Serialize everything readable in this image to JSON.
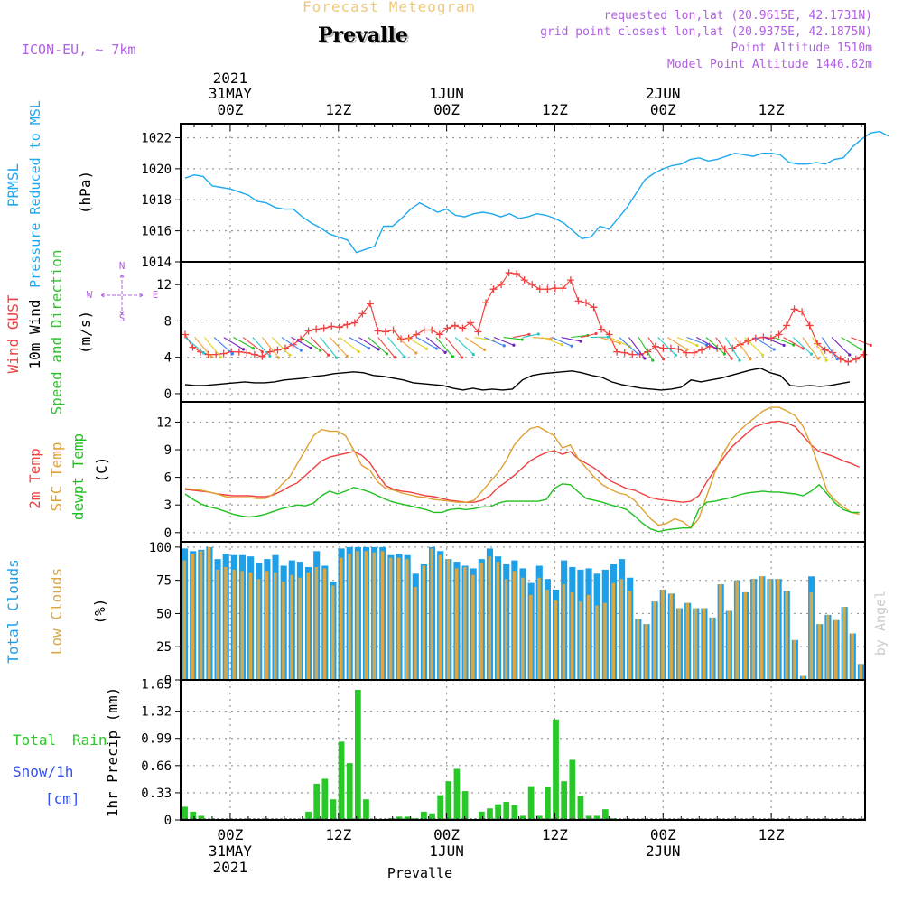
{
  "header": {
    "forecast_title": "Forecast Meteogram",
    "station": "Prevalle",
    "model": "ICON-EU, ~ 7km",
    "requested": "requested lon,lat (20.9615E, 42.1731N)",
    "grid_point": "grid point closest lon,lat (20.9375E, 42.1875N)",
    "point_altitude": "Point Altitude 1510m",
    "model_altitude": "Model Point Altitude 1446.62m",
    "credit": "by Angel",
    "footer_station": "Prevalle"
  },
  "time_axis": {
    "top_labels": [
      {
        "line1": "2021",
        "line2": "31MAY",
        "line3": "00Z",
        "hour": 0
      },
      {
        "line1": "",
        "line2": "",
        "line3": "12Z",
        "hour": 12
      },
      {
        "line1": "",
        "line2": "1JUN",
        "line3": "00Z",
        "hour": 24
      },
      {
        "line1": "",
        "line2": "",
        "line3": "12Z",
        "hour": 36
      },
      {
        "line1": "",
        "line2": "2JUN",
        "line3": "00Z",
        "hour": 48
      },
      {
        "line1": "",
        "line2": "",
        "line3": "12Z",
        "hour": 60
      }
    ],
    "bottom_labels": [
      {
        "line1": "00Z",
        "line2": "31MAY",
        "line3": "2021",
        "hour": 0
      },
      {
        "line1": "12Z",
        "line2": "",
        "line3": "",
        "hour": 12
      },
      {
        "line1": "00Z",
        "line2": "1JUN",
        "line3": "",
        "hour": 24
      },
      {
        "line1": "12Z",
        "line2": "",
        "line3": "",
        "hour": 36
      },
      {
        "line1": "00Z",
        "line2": "2JUN",
        "line3": "",
        "hour": 48
      },
      {
        "line1": "12Z",
        "line2": "",
        "line3": "",
        "hour": 60
      }
    ]
  },
  "colors": {
    "pressure": "#1ea8f0",
    "gust": "#f04040",
    "wind": "#000000",
    "direction_label": "#30c030",
    "compass": "#b060e0",
    "temp": "#f04040",
    "sfc_temp": "#e0a030",
    "dewpoint": "#20c020",
    "total_clouds": "#1ea0e8",
    "low_clouds": "#d8a848",
    "rain": "#28c828",
    "snow": "#3050f0"
  },
  "chart_data": [
    {
      "type": "line",
      "panel": "pressure",
      "ylabel_lines": [
        "PRMSL",
        "Pressure Reduced to MSL",
        "(hPa)"
      ],
      "yticks": [
        1014,
        1016,
        1018,
        1020,
        1022
      ],
      "ylim": [
        1014,
        1022.9
      ],
      "grid": true,
      "x_start_hour": -5,
      "x_step_hours": 1,
      "series": [
        {
          "values": [
            1019.4,
            1019.6,
            1019.5,
            1018.9,
            1018.8,
            1018.7,
            1018.5,
            1018.3,
            1017.9,
            1017.8,
            1017.5,
            1017.4,
            1017.4,
            1016.9,
            1016.5,
            1016.2,
            1015.8,
            1015.6,
            1015.4,
            1014.6,
            1014.8,
            1015.0,
            1016.3,
            1016.3,
            1016.8,
            1017.4,
            1017.8,
            1017.5,
            1017.2,
            1017.4,
            1017.0,
            1016.9,
            1017.1,
            1017.2,
            1017.1,
            1016.9,
            1017.1,
            1016.8,
            1016.9,
            1017.1,
            1017.0,
            1016.8,
            1016.5,
            1016.0,
            1015.5,
            1015.6,
            1016.3,
            1016.1,
            1016.8,
            1017.5,
            1018.4,
            1019.3,
            1019.7,
            1020.0,
            1020.2,
            1020.3,
            1020.6,
            1020.7,
            1020.5,
            1020.6,
            1020.8,
            1021.0,
            1020.9,
            1020.8,
            1021.0,
            1021.0,
            1020.9,
            1020.4,
            1020.3,
            1020.3,
            1020.4,
            1020.3,
            1020.6,
            1020.7,
            1021.4,
            1021.9,
            1022.3,
            1022.4,
            1022.1
          ]
        }
      ]
    },
    {
      "type": "line",
      "panel": "wind",
      "ylabel_lines": [
        "Wind GUST",
        "10m Wind",
        "Speed and Direction",
        "(m/s)"
      ],
      "compass": {
        "n": "N",
        "s": "S",
        "w": "W",
        "e": "E"
      },
      "yticks": [
        0,
        4,
        8,
        12
      ],
      "ylim": [
        -0.9,
        14.5
      ],
      "grid": true,
      "x_start_hour": -5,
      "x_step_hours": 1,
      "series": [
        {
          "name": "Wind GUST",
          "values": [
            6.5,
            5.1,
            4.6,
            4.3,
            4.3,
            4.4,
            4.6,
            4.6,
            4.5,
            4.3,
            4.1,
            4.6,
            4.8,
            5.0,
            5.4,
            6.0,
            6.9,
            7.1,
            7.2,
            7.4,
            7.3,
            7.6,
            7.8,
            8.8,
            9.9,
            6.9,
            6.8,
            7.0,
            6.0,
            6.1,
            6.5,
            7.0,
            7.0,
            6.5,
            7.2,
            7.5,
            7.2,
            7.8,
            6.8,
            10.0,
            11.5,
            12.0,
            13.3,
            13.2,
            12.5,
            12.0,
            11.5,
            11.5,
            11.6,
            11.6,
            12.5,
            10.2,
            10.0,
            9.5,
            7.1,
            6.5,
            4.6,
            4.5,
            4.3,
            4.3,
            4.6,
            5.2,
            5.0,
            5.0,
            4.9,
            4.5,
            4.5,
            4.8,
            5.2,
            5.0,
            4.9,
            5.0,
            5.4,
            5.8,
            6.1,
            6.2,
            6.1,
            6.5,
            7.5,
            9.3,
            9.0,
            7.5,
            5.5,
            4.8,
            4.5,
            3.8,
            3.5,
            3.8,
            4.3
          ]
        },
        {
          "name": "10m Wind",
          "values": [
            1.0,
            0.9,
            0.9,
            1.0,
            1.1,
            1.2,
            1.3,
            1.2,
            1.2,
            1.3,
            1.5,
            1.6,
            1.7,
            1.9,
            2.0,
            2.2,
            2.3,
            2.4,
            2.3,
            2.0,
            1.9,
            1.7,
            1.5,
            1.2,
            1.1,
            1.0,
            0.9,
            0.6,
            0.4,
            0.6,
            0.4,
            0.5,
            0.4,
            0.5,
            1.5,
            2.0,
            2.2,
            2.3,
            2.4,
            2.5,
            2.3,
            2.0,
            1.8,
            1.3,
            1.0,
            0.8,
            0.6,
            0.5,
            0.4,
            0.5,
            0.7,
            1.5,
            1.3,
            1.5,
            1.7,
            2.0,
            2.3,
            2.6,
            2.8,
            2.3,
            2.0,
            0.9,
            0.8,
            0.9,
            0.8,
            0.9,
            1.1,
            1.3
          ]
        }
      ],
      "arrows": {
        "y_value": 6.2,
        "start_hour": -5,
        "count": 70,
        "step_hours": 1.07
      },
      "legend_colors": [
        "#28c8c8",
        "#f0a030",
        "#e0d020",
        "#4080f0",
        "#7020c0",
        "#20c020",
        "#f04040"
      ]
    },
    {
      "type": "line",
      "panel": "temperature",
      "ylabel_lines": [
        "2m Temp",
        "SFC Temp",
        "dewpt Temp",
        "(C)"
      ],
      "yticks": [
        0,
        3,
        6,
        9,
        12
      ],
      "ylim": [
        -1,
        14.2
      ],
      "grid": true,
      "x_start_hour": -5,
      "x_step_hours": 1,
      "series": [
        {
          "name": "2m Temp",
          "values": [
            4.7,
            4.6,
            4.5,
            4.4,
            4.2,
            4.1,
            4.0,
            4.0,
            4.0,
            3.9,
            3.9,
            4.1,
            4.5,
            5.0,
            5.4,
            6.2,
            7.0,
            7.8,
            8.2,
            8.4,
            8.6,
            8.8,
            8.4,
            7.6,
            6.3,
            5.1,
            4.7,
            4.5,
            4.4,
            4.2,
            4.0,
            3.9,
            3.7,
            3.5,
            3.4,
            3.3,
            3.3,
            3.5,
            4.0,
            4.9,
            5.5,
            6.2,
            7.0,
            7.8,
            8.3,
            8.7,
            8.9,
            8.5,
            8.8,
            8.0,
            7.5,
            7.0,
            6.3,
            5.6,
            5.2,
            4.8,
            4.6,
            4.2,
            3.8,
            3.6,
            3.5,
            3.4,
            3.3,
            3.4,
            4.0,
            5.5,
            6.8,
            8.0,
            9.2,
            10.0,
            10.8,
            11.5,
            11.8,
            12.0,
            12.1,
            11.9,
            11.5,
            10.5,
            9.5,
            8.8,
            8.5,
            8.2,
            7.8,
            7.5,
            7.1
          ]
        },
        {
          "name": "SFC Temp",
          "values": [
            4.8,
            4.7,
            4.6,
            4.4,
            4.2,
            3.9,
            3.8,
            3.8,
            3.8,
            3.7,
            3.7,
            4.2,
            5.2,
            6.0,
            7.5,
            9.0,
            10.5,
            11.2,
            11.0,
            11.0,
            10.5,
            9.0,
            7.3,
            6.8,
            5.5,
            4.8,
            4.6,
            4.3,
            4.1,
            3.9,
            3.8,
            3.6,
            3.5,
            3.4,
            3.3,
            3.3,
            3.5,
            4.5,
            5.5,
            6.5,
            7.8,
            9.5,
            10.5,
            11.3,
            11.5,
            11.0,
            10.5,
            9.2,
            9.5,
            8.0,
            7.0,
            6.0,
            5.2,
            4.7,
            4.3,
            4.1,
            3.5,
            2.5,
            1.5,
            0.8,
            1.0,
            1.5,
            1.2,
            0.5,
            1.5,
            4.0,
            6.5,
            8.5,
            10.0,
            11.0,
            11.8,
            12.5,
            13.2,
            13.6,
            13.6,
            13.2,
            12.7,
            11.5,
            9.5,
            7.0,
            4.5,
            3.5,
            2.8,
            2.2,
            2.0
          ]
        },
        {
          "name": "dewpt Temp",
          "values": [
            4.2,
            3.6,
            3.1,
            2.8,
            2.6,
            2.3,
            2.0,
            1.8,
            1.7,
            1.8,
            2.0,
            2.3,
            2.6,
            2.8,
            3.0,
            2.9,
            3.2,
            4.0,
            4.5,
            4.2,
            4.5,
            4.9,
            4.7,
            4.4,
            4.0,
            3.6,
            3.3,
            3.1,
            2.9,
            2.7,
            2.5,
            2.2,
            2.2,
            2.5,
            2.6,
            2.5,
            2.6,
            2.8,
            2.8,
            3.2,
            3.4,
            3.4,
            3.4,
            3.4,
            3.4,
            3.6,
            4.8,
            5.3,
            5.2,
            4.4,
            3.7,
            3.5,
            3.3,
            3.0,
            2.8,
            2.5,
            1.8,
            1.0,
            0.4,
            0.1,
            0.3,
            0.4,
            0.5,
            0.5,
            2.5,
            3.3,
            3.4,
            3.6,
            3.8,
            4.1,
            4.3,
            4.4,
            4.5,
            4.4,
            4.4,
            4.3,
            4.2,
            4.0,
            4.5,
            5.2,
            4.2,
            3.2,
            2.5,
            2.2,
            2.2
          ]
        }
      ]
    },
    {
      "type": "bar",
      "panel": "clouds",
      "ylabel_lines": [
        "Total Clouds",
        "Low Clouds",
        "(%)"
      ],
      "yticks": [
        0,
        25,
        50,
        75,
        100
      ],
      "ylim": [
        0,
        104
      ],
      "grid": true,
      "x_start_hour": -4.5,
      "x_step_hours": 1,
      "series": [
        {
          "name": "Total Clouds",
          "values": [
            99,
            97,
            98,
            100,
            91,
            95,
            94,
            94,
            93,
            88,
            91,
            94,
            86,
            90,
            89,
            85,
            97,
            86,
            74,
            99,
            100,
            100,
            100,
            100,
            100,
            94,
            95,
            94,
            80,
            87,
            100,
            97,
            91,
            89,
            86,
            84,
            91,
            99,
            93,
            87,
            90,
            84,
            73,
            86,
            76,
            68,
            90,
            85,
            83,
            84,
            80,
            83,
            87,
            91,
            77,
            46,
            42,
            59,
            68,
            65,
            54,
            58,
            54,
            54,
            47,
            72,
            52,
            75,
            66,
            76,
            78,
            76,
            76,
            67,
            30,
            3,
            78,
            42,
            49,
            45,
            55,
            35,
            12
          ]
        },
        {
          "name": "Low Clouds",
          "values": [
            90,
            95,
            97,
            100,
            83,
            85,
            83,
            82,
            81,
            76,
            82,
            81,
            74,
            79,
            77,
            81,
            85,
            84,
            71,
            92,
            95,
            97,
            97,
            96,
            97,
            92,
            92,
            91,
            70,
            86,
            99,
            94,
            91,
            84,
            85,
            79,
            88,
            93,
            89,
            76,
            82,
            77,
            64,
            77,
            68,
            60,
            72,
            66,
            59,
            64,
            56,
            58,
            73,
            76,
            67,
            46,
            42,
            59,
            68,
            65,
            54,
            58,
            54,
            54,
            47,
            72,
            52,
            75,
            66,
            76,
            78,
            76,
            76,
            67,
            30,
            3,
            66,
            42,
            49,
            45,
            55,
            35,
            12
          ]
        }
      ]
    },
    {
      "type": "bar",
      "panel": "precip",
      "legend_lines": [
        "Total",
        "Rain",
        "Snow/1h",
        "[cm]"
      ],
      "ylabel_lines": [
        "1hr Precip (mm)"
      ],
      "yticks": [
        0,
        0.33,
        0.66,
        0.99,
        1.32,
        1.65
      ],
      "ylim": [
        0,
        1.7
      ],
      "grid": true,
      "x_start_hour": -4.5,
      "x_step_hours": 1,
      "series": [
        {
          "name": "Total Rain",
          "values": [
            0.16,
            0.1,
            0.05,
            0,
            0,
            0,
            0,
            0,
            0,
            0,
            0,
            0,
            0,
            0,
            0,
            0.1,
            0.44,
            0.5,
            0.25,
            0.95,
            0.69,
            1.58,
            0.25,
            0,
            0.01,
            0.02,
            0.04,
            0.04,
            0.02,
            0.1,
            0.08,
            0.3,
            0.47,
            0.62,
            0.35,
            0,
            0.1,
            0.14,
            0.19,
            0.22,
            0.18,
            0.05,
            0.41,
            0.05,
            0.4,
            1.22,
            0.47,
            0.73,
            0.29,
            0.05,
            0.05,
            0.13,
            0.02,
            0,
            0,
            0,
            0,
            0,
            0,
            0,
            0,
            0,
            0,
            0,
            0,
            0,
            0,
            0,
            0,
            0,
            0,
            0,
            0,
            0,
            0,
            0,
            0,
            0,
            0,
            0,
            0,
            0,
            0
          ]
        }
      ]
    }
  ]
}
